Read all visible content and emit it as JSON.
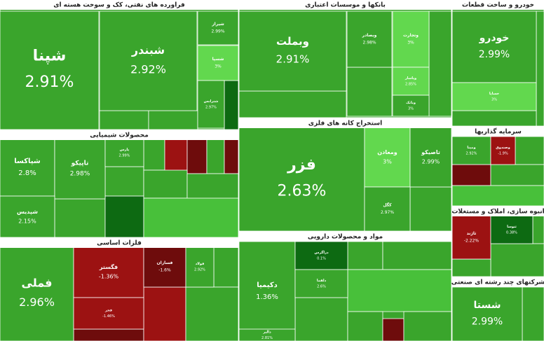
{
  "sectors": [
    {
      "title": "فراورده های نفتی، کک و سوخت هسته ای",
      "tiles": [
        {
          "name": "شپنا",
          "change": "2.91%"
        },
        {
          "name": "شبندر",
          "change": "2.92%"
        },
        {
          "name": "شیراز",
          "change": "2.99%"
        },
        {
          "name": "شسپا",
          "change": "3%"
        },
        {
          "name": "شترانس",
          "change": "2.97%"
        }
      ]
    },
    {
      "title": "بانکها و موسسات اعتباری",
      "tiles": [
        {
          "name": "وبملت",
          "change": "2.91%"
        },
        {
          "name": "وبصادر",
          "change": "2.98%"
        },
        {
          "name": "وتجارت",
          "change": "3%"
        },
        {
          "name": "وپاسار",
          "change": "2.85%"
        },
        {
          "name": "وبانک",
          "change": "3%"
        }
      ]
    },
    {
      "title": "خودرو و ساخت قطعات",
      "tiles": [
        {
          "name": "خودرو",
          "change": "2.99%"
        },
        {
          "name": "خساپا",
          "change": "3%"
        }
      ]
    },
    {
      "title": "محصولات شیمیایی",
      "tiles": [
        {
          "name": "شپاکسا",
          "change": "2.8%"
        },
        {
          "name": "تاپیکو",
          "change": "2.98%"
        },
        {
          "name": "شپدیس",
          "change": "2.15%"
        },
        {
          "name": "پارس",
          "change": "2.99%"
        }
      ]
    },
    {
      "title": "استخراج کانه های فلزی",
      "tiles": [
        {
          "name": "فزر",
          "change": "2.63%"
        },
        {
          "name": "ومعادن",
          "change": "3%"
        },
        {
          "name": "تاصیکو",
          "change": "2.99%"
        },
        {
          "name": "کگل",
          "change": "2.97%"
        }
      ]
    },
    {
      "title": "سرمایه گذاریها",
      "tiles": [
        {
          "name": "ومپنا",
          "change": "2.92%"
        },
        {
          "name": "وصندوق",
          "change": "-1.9%"
        }
      ]
    },
    {
      "title": "انبوه سازی، املاک و مستغلات",
      "tiles": [
        {
          "name": "ثاژند",
          "change": "-2.22%"
        },
        {
          "name": "ثنوسا",
          "change": "0.38%"
        }
      ]
    },
    {
      "title": "فلزات اساسی",
      "tiles": [
        {
          "name": "فملی",
          "change": "2.96%"
        },
        {
          "name": "فگستر",
          "change": "-1.36%"
        },
        {
          "name": "فسازان",
          "change": "-1.6%"
        },
        {
          "name": "فولاد",
          "change": "2.92%"
        },
        {
          "name": "فجر",
          "change": "-1.46%"
        }
      ]
    },
    {
      "title": "مواد و محصولات دارویی",
      "tiles": [
        {
          "name": "دکیمیا",
          "change": "1.36%"
        },
        {
          "name": "دزاگرس",
          "change": "0.1%"
        },
        {
          "name": "دالبر",
          "change": "2.81%"
        },
        {
          "name": "دلقما",
          "change": "2.6%"
        }
      ]
    },
    {
      "title": "شرکتهای چند رشته ای صنعتی",
      "tiles": [
        {
          "name": "شستا",
          "change": "2.99%"
        }
      ]
    }
  ]
}
